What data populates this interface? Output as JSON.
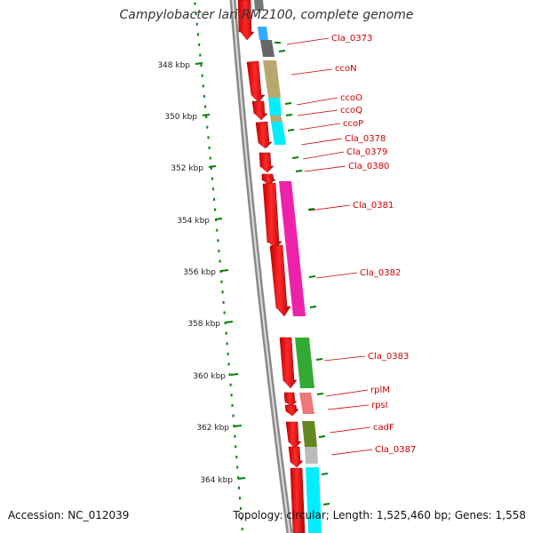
{
  "title": "Campylobacter lari RM2100, complete genome",
  "accession": "Accession: NC_012039",
  "summary": "Topology: circular; Length: 1,525,460 bp; Genes: 1,558",
  "kbp_labels": [
    "348 kbp",
    "350 kbp",
    "352 kbp",
    "354 kbp",
    "356 kbp",
    "358 kbp",
    "360 kbp",
    "362 kbp",
    "364 kbp"
  ],
  "gene_labels": [
    "Cla_0373",
    "ccoN",
    "ccoO",
    "ccoQ",
    "ccoP",
    "Cla_0378",
    "Cla_0379",
    "Cla_0380",
    "Cla_0381",
    "Cla_0382",
    "Cla_0383",
    "rplM",
    "rpsI",
    "cadF",
    "Cla_0387"
  ],
  "colors": {
    "gene_arrow": "#ff0000",
    "label_text": "#cc0000",
    "ruler_ticks": "#008000",
    "backbone": "#888888",
    "cog_gray": "#777777",
    "cog_blue": "#33aaff",
    "cog_tan": "#b8a870",
    "cog_cyan": "#00eeff",
    "cog_magenta": "#ee22aa",
    "cog_green": "#33aa33",
    "cog_pink": "#ee7777",
    "cog_olive": "#668822",
    "cog_silver": "#bbbbbb"
  }
}
